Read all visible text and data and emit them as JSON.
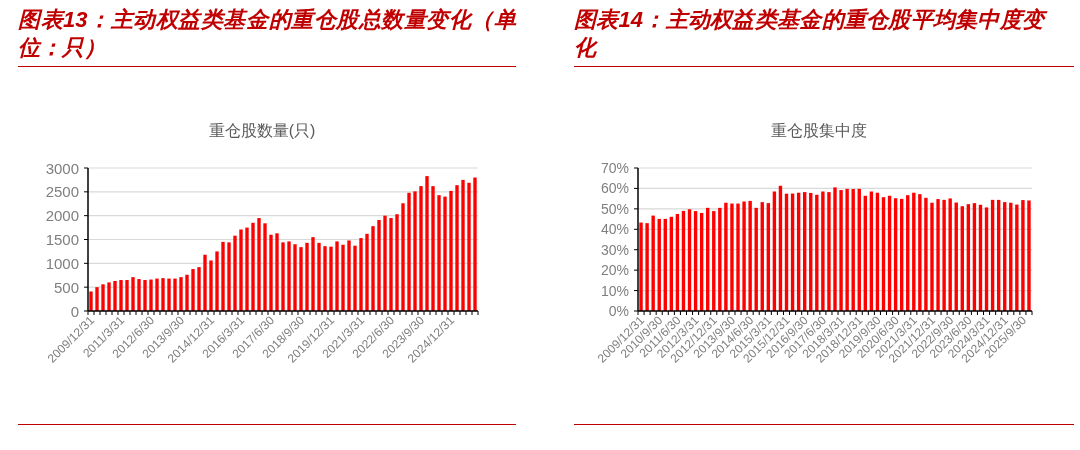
{
  "chart_data": [
    {
      "type": "bar",
      "title": "图表13：主动权益类基金的重仓股总数量变化（单位：只）",
      "subtitle": "重仓股数量(只)",
      "categories": [
        "2009/12/31",
        null,
        null,
        null,
        null,
        "2011/3/31",
        null,
        null,
        null,
        null,
        "2012/6/30",
        null,
        null,
        null,
        null,
        "2013/9/30",
        null,
        null,
        null,
        null,
        "2014/12/31",
        null,
        null,
        null,
        null,
        "2016/3/31",
        null,
        null,
        null,
        null,
        "2017/6/30",
        null,
        null,
        null,
        null,
        "2018/9/30",
        null,
        null,
        null,
        null,
        "2019/12/31",
        null,
        null,
        null,
        null,
        "2021/3/31",
        null,
        null,
        null,
        null,
        "2022/6/30",
        null,
        null,
        null,
        null,
        "2023/9/30",
        null,
        null,
        null,
        null,
        "2024/12/31",
        null,
        null,
        null,
        null
      ],
      "values": [
        410,
        500,
        560,
        600,
        630,
        650,
        650,
        710,
        670,
        650,
        660,
        680,
        690,
        680,
        680,
        710,
        760,
        880,
        920,
        1180,
        1060,
        1250,
        1450,
        1440,
        1580,
        1710,
        1750,
        1850,
        1950,
        1840,
        1600,
        1630,
        1440,
        1460,
        1400,
        1340,
        1430,
        1550,
        1430,
        1360,
        1350,
        1460,
        1390,
        1480,
        1370,
        1530,
        1620,
        1780,
        1910,
        2000,
        1950,
        2030,
        2260,
        2480,
        2510,
        2620,
        2830,
        2620,
        2430,
        2400,
        2520,
        2640,
        2750,
        2690,
        2800
      ],
      "color": "#ff0000",
      "ylim": [
        0,
        3000
      ],
      "yticks": [
        0,
        500,
        1000,
        1500,
        2000,
        2500,
        3000
      ],
      "grid": "y"
    },
    {
      "type": "bar",
      "title": "图表14：主动权益类基金的重仓股平均集中度变化",
      "subtitle": "重仓股集中度",
      "categories": [
        "2009/12/31",
        null,
        null,
        "2010/9/30",
        null,
        null,
        "2011/6/30",
        null,
        null,
        "2012/3/31",
        null,
        null,
        "2012/12/31",
        null,
        null,
        "2013/9/30",
        null,
        null,
        "2014/6/30",
        null,
        null,
        "2015/3/31",
        null,
        null,
        "2015/12/31",
        null,
        null,
        "2016/9/30",
        null,
        null,
        "2017/6/30",
        null,
        null,
        "2018/3/31",
        null,
        null,
        "2018/12/31",
        null,
        null,
        "2019/9/30",
        null,
        null,
        "2020/6/30",
        null,
        null,
        "2021/3/31",
        null,
        null,
        "2021/12/31",
        null,
        null,
        "2022/9/30",
        null,
        null,
        "2023/6/30",
        null,
        null,
        "2024/3/31",
        null,
        null,
        "2024/12/31",
        null,
        null,
        "2025/9/30",
        null
      ],
      "values": [
        43.3,
        43.0,
        46.7,
        45.1,
        45.1,
        46.1,
        47.5,
        49.0,
        49.8,
        48.9,
        48.0,
        50.5,
        48.9,
        50.5,
        53.0,
        52.6,
        52.6,
        53.6,
        53.9,
        50.5,
        53.3,
        52.8,
        58.5,
        61.3,
        57.4,
        57.5,
        57.9,
        58.2,
        57.8,
        56.9,
        58.5,
        58.2,
        60.5,
        59.2,
        59.8,
        59.7,
        59.8,
        56.4,
        58.5,
        57.9,
        55.7,
        56.4,
        55.2,
        54.9,
        56.7,
        57.9,
        57.2,
        55.4,
        53.0,
        54.8,
        54.4,
        55.1,
        53.1,
        51.3,
        52.3,
        52.8,
        52.0,
        50.7,
        54.4,
        54.4,
        53.3,
        53.0,
        52.1,
        54.3,
        54.1
      ],
      "color": "#ff0000",
      "ylim": [
        0,
        70
      ],
      "yticks": [
        {
          "value": 0,
          "label": "0%"
        },
        {
          "value": 10,
          "label": "10%"
        },
        {
          "value": 20,
          "label": "20%"
        },
        {
          "value": 30,
          "label": "30%"
        },
        {
          "value": 40,
          "label": "40%"
        },
        {
          "value": 50,
          "label": "50%"
        },
        {
          "value": 60,
          "label": "60%"
        },
        {
          "value": 70,
          "label": "70%"
        }
      ],
      "grid": "y"
    }
  ]
}
